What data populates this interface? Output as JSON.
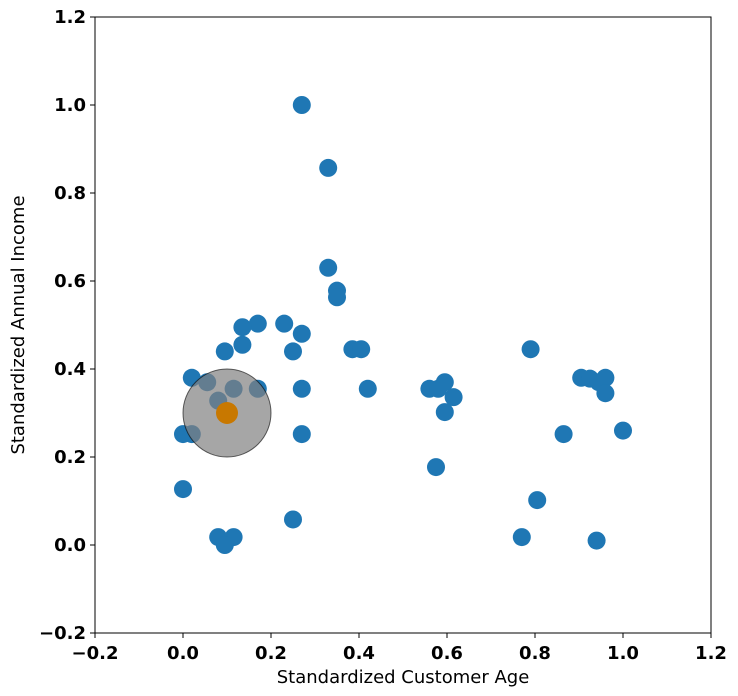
{
  "chart_data": {
    "type": "scatter",
    "title": "",
    "xlabel": "Standardized Customer Age",
    "ylabel": "Standardized Annual Income",
    "xlim": [
      -0.2,
      1.2
    ],
    "ylim": [
      -0.2,
      1.2
    ],
    "xticks": [
      "−0.2",
      "0.0",
      "0.2",
      "0.4",
      "0.6",
      "0.8",
      "1.0",
      "1.2"
    ],
    "yticks": [
      "−0.2",
      "0.0",
      "0.2",
      "0.4",
      "0.6",
      "0.8",
      "1.0",
      "1.2"
    ],
    "grid": false,
    "point_color": "#1f77b4",
    "series": [
      {
        "points": [
          [
            0.27,
            1.0
          ],
          [
            0.33,
            0.857
          ],
          [
            0.33,
            0.63
          ],
          [
            0.35,
            0.578
          ],
          [
            0.35,
            0.563
          ],
          [
            0.23,
            0.503
          ],
          [
            0.17,
            0.503
          ],
          [
            0.135,
            0.495
          ],
          [
            0.27,
            0.48
          ],
          [
            0.135,
            0.455
          ],
          [
            0.095,
            0.44
          ],
          [
            0.25,
            0.44
          ],
          [
            0.385,
            0.445
          ],
          [
            0.405,
            0.445
          ],
          [
            0.79,
            0.445
          ],
          [
            0.02,
            0.38
          ],
          [
            0.055,
            0.37
          ],
          [
            0.115,
            0.355
          ],
          [
            0.17,
            0.355
          ],
          [
            0.27,
            0.355
          ],
          [
            0.42,
            0.355
          ],
          [
            0.56,
            0.355
          ],
          [
            0.58,
            0.355
          ],
          [
            0.595,
            0.37
          ],
          [
            0.615,
            0.336
          ],
          [
            0.08,
            0.328
          ],
          [
            0.595,
            0.302
          ],
          [
            0.905,
            0.38
          ],
          [
            0.925,
            0.378
          ],
          [
            0.945,
            0.37
          ],
          [
            0.96,
            0.38
          ],
          [
            0.96,
            0.345
          ],
          [
            0.0,
            0.252
          ],
          [
            0.02,
            0.252
          ],
          [
            0.27,
            0.252
          ],
          [
            0.865,
            0.252
          ],
          [
            1.0,
            0.26
          ],
          [
            0.575,
            0.177
          ],
          [
            0.0,
            0.127
          ],
          [
            0.805,
            0.102
          ],
          [
            0.25,
            0.058
          ],
          [
            0.08,
            0.018
          ],
          [
            0.115,
            0.018
          ],
          [
            0.095,
            0.0
          ],
          [
            0.77,
            0.018
          ],
          [
            0.94,
            0.01
          ]
        ]
      }
    ],
    "overlays": [
      {
        "kind": "circle",
        "cx": 0.1,
        "cy": 0.3,
        "r": 0.1,
        "color": "#808080",
        "opacity": 0.7
      },
      {
        "kind": "point",
        "x": 0.1,
        "y": 0.3,
        "color": "#c87800"
      }
    ]
  }
}
